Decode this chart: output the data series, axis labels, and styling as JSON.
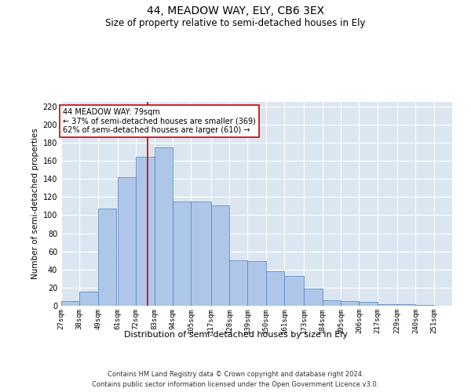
{
  "title1": "44, MEADOW WAY, ELY, CB6 3EX",
  "title2": "Size of property relative to semi-detached houses in Ely",
  "xlabel": "Distribution of semi-detached houses by size in Ely",
  "ylabel": "Number of semi-detached properties",
  "footnote1": "Contains HM Land Registry data © Crown copyright and database right 2024.",
  "footnote2": "Contains public sector information licensed under the Open Government Licence v3.0.",
  "annotation_line1": "44 MEADOW WAY: 79sqm",
  "annotation_line2": "← 37% of semi-detached houses are smaller (369)",
  "annotation_line3": "62% of semi-detached houses are larger (610) →",
  "property_sqm": 79,
  "bar_left_edges": [
    27,
    38,
    49,
    61,
    72,
    83,
    94,
    105,
    117,
    128,
    139,
    150,
    161,
    173,
    184,
    195,
    206,
    217,
    229,
    240
  ],
  "bar_widths": [
    11,
    11,
    11,
    11,
    11,
    11,
    11,
    12,
    11,
    11,
    11,
    11,
    12,
    11,
    11,
    11,
    11,
    12,
    11,
    11
  ],
  "bar_heights": [
    5,
    16,
    107,
    142,
    164,
    175,
    115,
    115,
    111,
    50,
    49,
    38,
    33,
    19,
    6,
    5,
    4,
    2,
    2,
    1
  ],
  "tick_labels": [
    "27sqm",
    "38sqm",
    "49sqm",
    "61sqm",
    "72sqm",
    "83sqm",
    "94sqm",
    "105sqm",
    "117sqm",
    "128sqm",
    "139sqm",
    "150sqm",
    "161sqm",
    "173sqm",
    "184sqm",
    "195sqm",
    "206sqm",
    "217sqm",
    "229sqm",
    "240sqm",
    "251sqm"
  ],
  "bar_color": "#aec6e8",
  "bar_edge_color": "#4f81bd",
  "bg_color": "#dce6f1",
  "grid_color": "#ffffff",
  "vline_color": "#cc0000",
  "box_edge_color": "#cc0000",
  "ylim": [
    0,
    225
  ],
  "yticks": [
    0,
    20,
    40,
    60,
    80,
    100,
    120,
    140,
    160,
    180,
    200,
    220
  ],
  "title1_fontsize": 10,
  "title2_fontsize": 8.5,
  "ylabel_fontsize": 7.5,
  "xlabel_fontsize": 8,
  "footnote_fontsize": 6,
  "annotation_fontsize": 7,
  "tick_fontsize": 6.5
}
